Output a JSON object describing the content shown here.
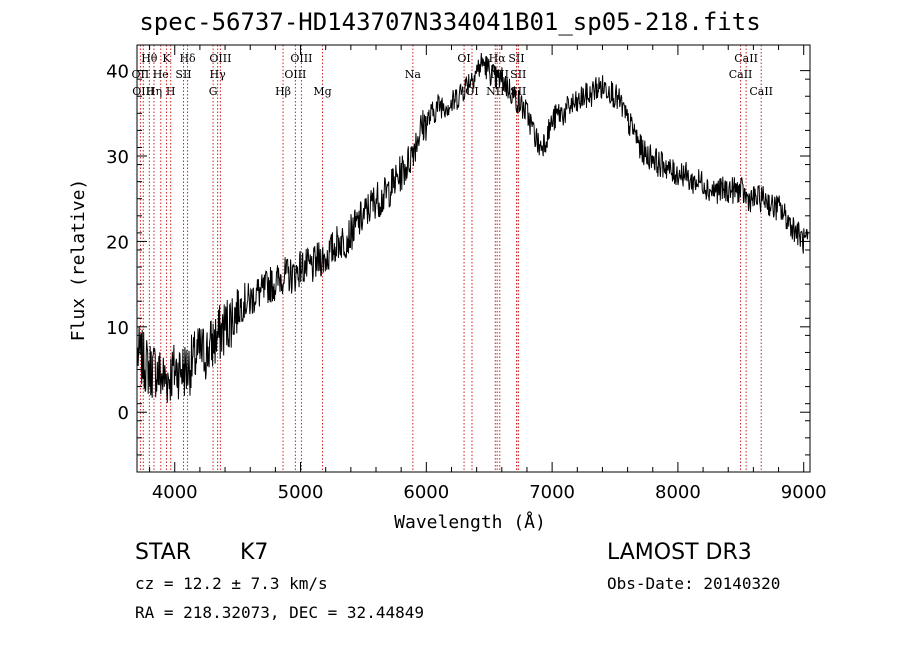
{
  "chart_data": {
    "type": "line",
    "title": "spec-56737-HD143707N334041B01_sp05-218.fits",
    "xlabel": "Wavelength (Å)",
    "ylabel": "Flux (relative)",
    "xlim": [
      3700,
      9050
    ],
    "ylim": [
      -7,
      43
    ],
    "xticks": [
      4000,
      5000,
      6000,
      7000,
      8000,
      9000
    ],
    "yticks": [
      0,
      10,
      20,
      30,
      40
    ],
    "series": [
      {
        "name": "flux",
        "x": [
          3700,
          3750,
          3800,
          3850,
          3900,
          3950,
          4000,
          4050,
          4100,
          4150,
          4200,
          4250,
          4300,
          4350,
          4400,
          4450,
          4500,
          4550,
          4600,
          4650,
          4700,
          4750,
          4800,
          4850,
          4900,
          4950,
          5000,
          5050,
          5100,
          5150,
          5200,
          5250,
          5300,
          5350,
          5400,
          5450,
          5500,
          5550,
          5600,
          5650,
          5700,
          5750,
          5800,
          5850,
          5900,
          5950,
          6000,
          6050,
          6100,
          6150,
          6200,
          6250,
          6300,
          6350,
          6400,
          6450,
          6500,
          6550,
          6600,
          6650,
          6700,
          6750,
          6800,
          6850,
          6900,
          6950,
          7000,
          7050,
          7100,
          7150,
          7200,
          7250,
          7300,
          7350,
          7400,
          7450,
          7500,
          7550,
          7600,
          7650,
          7700,
          7750,
          7800,
          7850,
          7900,
          7950,
          8000,
          8050,
          8100,
          8150,
          8200,
          8250,
          8300,
          8350,
          8400,
          8450,
          8500,
          8550,
          8600,
          8650,
          8700,
          8750,
          8800,
          8850,
          8900,
          8950,
          9000
        ],
        "values": [
          7,
          6,
          5,
          5,
          4,
          4,
          5,
          5,
          5,
          6,
          7,
          7,
          8,
          9,
          10,
          11,
          12,
          13,
          13,
          14,
          14,
          15,
          15,
          16,
          16,
          16,
          17,
          17,
          17,
          18,
          18,
          19,
          20,
          20,
          21,
          22,
          23,
          24,
          25,
          25,
          26,
          27,
          28,
          29,
          31,
          33,
          34,
          35,
          36,
          36,
          36,
          37,
          38,
          39,
          40,
          41,
          40,
          39,
          39,
          38,
          37,
          36,
          35,
          33,
          31,
          32,
          34,
          35,
          35,
          36,
          36,
          37,
          37,
          38,
          38,
          38,
          37,
          36,
          34,
          33,
          31,
          30,
          30,
          29,
          29,
          28,
          28,
          28,
          27,
          27,
          27,
          26,
          26,
          26,
          26,
          26,
          26,
          25,
          25,
          25,
          25,
          24,
          24,
          23,
          22,
          21,
          20
        ]
      }
    ],
    "lines": [
      {
        "label": "Hθ",
        "x": 3798,
        "row": 1
      },
      {
        "label": "OII",
        "x": 3727,
        "row": 2
      },
      {
        "label": "OIII",
        "x": 3750,
        "row": 3
      },
      {
        "label": "K",
        "x": 3934,
        "row": 1
      },
      {
        "label": "He",
        "x": 3889,
        "row": 2
      },
      {
        "label": "Hη",
        "x": 3835,
        "row": 3
      },
      {
        "label": "SII",
        "x": 4070,
        "row": 2
      },
      {
        "label": "H",
        "x": 3968,
        "row": 3
      },
      {
        "label": "Hδ",
        "x": 4102,
        "row": 1
      },
      {
        "label": "OIII",
        "x": 4363,
        "row": 1
      },
      {
        "label": "Hγ",
        "x": 4341,
        "row": 2
      },
      {
        "label": "G",
        "x": 4305,
        "row": 3
      },
      {
        "label": "Hβ",
        "x": 4861,
        "row": 3
      },
      {
        "label": "OIII",
        "x": 5007,
        "row": 1
      },
      {
        "label": "OIII",
        "x": 4959,
        "row": 2
      },
      {
        "label": "Mg",
        "x": 5175,
        "row": 3
      },
      {
        "label": "Na",
        "x": 5893,
        "row": 2
      },
      {
        "label": "OI",
        "x": 6300,
        "row": 1
      },
      {
        "label": "OI",
        "x": 6363,
        "row": 3
      },
      {
        "label": "Hα",
        "x": 6563,
        "row": 1
      },
      {
        "label": "NII",
        "x": 6584,
        "row": 2
      },
      {
        "label": "NII",
        "x": 6548,
        "row": 3
      },
      {
        "label": "SII",
        "x": 6717,
        "row": 1
      },
      {
        "label": "SII",
        "x": 6731,
        "row": 2
      },
      {
        "label": "SII",
        "x": 6731,
        "row": 3
      },
      {
        "label": "CaII",
        "x": 8542,
        "row": 1
      },
      {
        "label": "CaII",
        "x": 8498,
        "row": 2
      },
      {
        "label": "CaII",
        "x": 8662,
        "row": 3
      }
    ]
  },
  "info": {
    "object_class": "STAR",
    "subclass": "K7",
    "survey": "LAMOST DR3",
    "cz": "cz = 12.2 ± 7.3 km/s",
    "obs_date": "Obs-Date: 20140320",
    "coords": "RA = 218.32073, DEC =  32.44849"
  }
}
